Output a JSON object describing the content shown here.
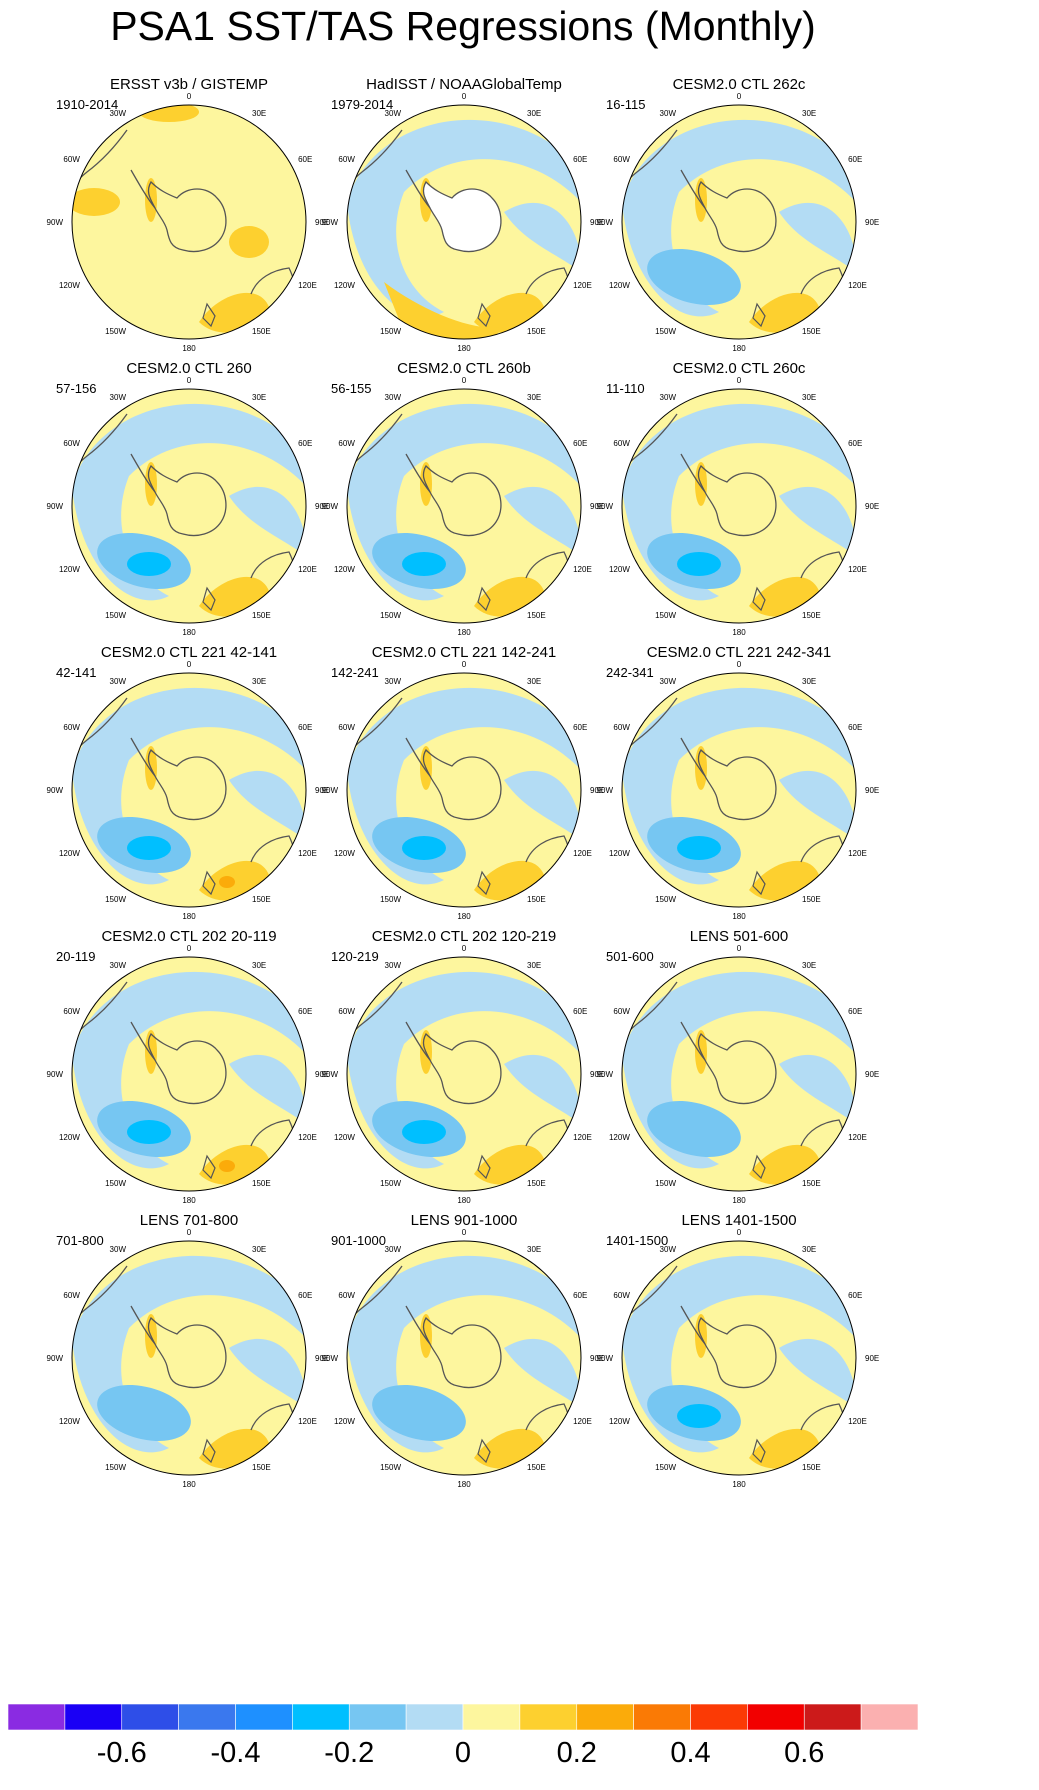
{
  "title": "PSA1 SST/TAS Regressions (Monthly)",
  "chart_data": [
    {
      "type": "heatmap",
      "projection": "south-polar-stereographic",
      "panels": [
        {
          "title": "ERSST v3b / GISTEMP",
          "period": "1910-2014",
          "missing_region": false,
          "max_cold": 0,
          "max_warm": 0.1
        },
        {
          "title": "HadISST / NOAAGlobalTemp",
          "period": "1979-2014",
          "missing_region": true,
          "max_cold": -0.05,
          "max_warm": 0.15
        },
        {
          "title": "CESM2.0 CTL 262c",
          "period": "16-115",
          "missing_region": false,
          "max_cold": -0.1,
          "max_warm": 0.15
        },
        {
          "title": "CESM2.0 CTL 260",
          "period": "57-156",
          "missing_region": false,
          "max_cold": -0.2,
          "max_warm": 0.2
        },
        {
          "title": "CESM2.0 CTL 260b",
          "period": "56-155",
          "missing_region": false,
          "max_cold": -0.2,
          "max_warm": 0.2
        },
        {
          "title": "CESM2.0 CTL 260c",
          "period": "11-110",
          "missing_region": false,
          "max_cold": -0.2,
          "max_warm": 0.2
        },
        {
          "title": "CESM2.0 CTL 221 42-141",
          "period": "42-141",
          "missing_region": false,
          "max_cold": -0.25,
          "max_warm": 0.3
        },
        {
          "title": "CESM2.0 CTL 221 142-241",
          "period": "142-241",
          "missing_region": false,
          "max_cold": -0.2,
          "max_warm": 0.2
        },
        {
          "title": "CESM2.0 CTL 221 242-341",
          "period": "242-341",
          "missing_region": false,
          "max_cold": -0.2,
          "max_warm": 0.2
        },
        {
          "title": "CESM2.0 CTL 202 20-119",
          "period": "20-119",
          "missing_region": false,
          "max_cold": -0.2,
          "max_warm": 0.3
        },
        {
          "title": "CESM2.0 CTL 202 120-219",
          "period": "120-219",
          "missing_region": false,
          "max_cold": -0.2,
          "max_warm": 0.2
        },
        {
          "title": "LENS 501-600",
          "period": "501-600",
          "missing_region": false,
          "max_cold": -0.1,
          "max_warm": 0.15
        },
        {
          "title": "LENS 701-800",
          "period": "701-800",
          "missing_region": false,
          "max_cold": -0.15,
          "max_warm": 0.15
        },
        {
          "title": "LENS 901-1000",
          "period": "901-1000",
          "missing_region": false,
          "max_cold": -0.15,
          "max_warm": 0.15
        },
        {
          "title": "LENS 1401-1500",
          "period": "1401-1500",
          "missing_region": false,
          "max_cold": -0.2,
          "max_warm": 0.15
        }
      ],
      "longitude_labels": [
        "0",
        "30E",
        "60E",
        "90E",
        "120E",
        "150E",
        "180",
        "150W",
        "120W",
        "90W",
        "60W",
        "30W"
      ],
      "colorbar": {
        "levels": [
          -0.7,
          -0.6,
          -0.5,
          -0.4,
          -0.3,
          -0.2,
          -0.1,
          0,
          0.1,
          0.2,
          0.3,
          0.4,
          0.5,
          0.6,
          0.7
        ],
        "colors": [
          "#8a2be2",
          "#1a00f5",
          "#2e4ee8",
          "#3a78ee",
          "#1e90ff",
          "#00bfff",
          "#76c6f2",
          "#b3dcf4",
          "#fdf69e",
          "#fdd02f",
          "#fbab0a",
          "#fa7a05",
          "#fb3a05",
          "#f20000",
          "#cc1a1a",
          "#fbb0b0"
        ],
        "tick_labels": [
          "-0.6",
          "-0.4",
          "-0.2",
          "0",
          "0.2",
          "0.4",
          "0.6"
        ],
        "tick_values": [
          -0.6,
          -0.4,
          -0.2,
          0,
          0.2,
          0.4,
          0.6
        ]
      }
    }
  ],
  "colors": {
    "missing": "#ffffff",
    "coast": "#555555",
    "border": "#000000"
  }
}
